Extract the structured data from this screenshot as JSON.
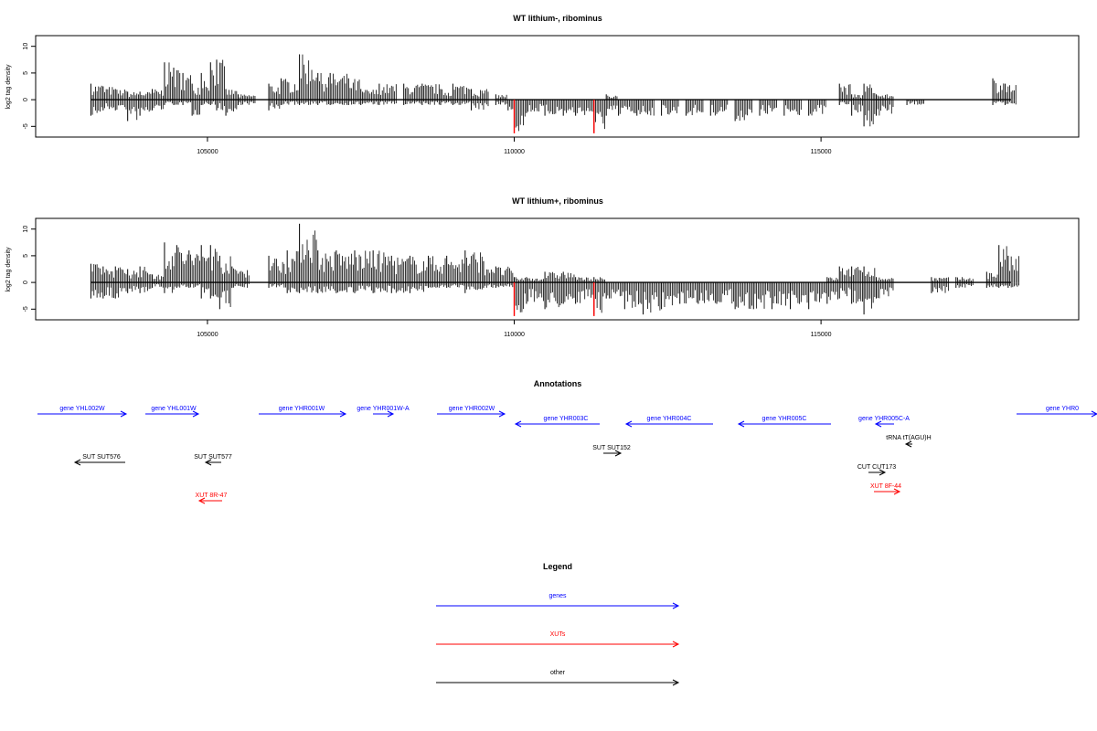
{
  "colors": {
    "gene": "#0000ff",
    "xut": "#ff0000",
    "other": "#000000",
    "pos_bar": "#000000",
    "neg_bar": "#000000",
    "highlight": "#ff0000",
    "axis": "#000000"
  },
  "chart_data": [
    {
      "type": "bar",
      "title": "WT lithium-, ribominus",
      "ylabel": "log2 tag density",
      "xlim": [
        102200,
        119200
      ],
      "ylim": [
        -7,
        12
      ],
      "xticks": [
        105000,
        110000,
        115000
      ],
      "yticks": [
        -5,
        0,
        5,
        10
      ],
      "data_range": [
        103100,
        118100
      ],
      "series": [
        {
          "values": [
            [
              103100,
              3,
              -3
            ],
            [
              103300,
              2.5,
              -2
            ],
            [
              103500,
              2,
              -2
            ],
            [
              103700,
              1.5,
              -4
            ],
            [
              103900,
              1.5,
              -3
            ],
            [
              104100,
              2,
              -2
            ],
            [
              104300,
              7,
              -1
            ],
            [
              104450,
              6,
              -1
            ],
            [
              104600,
              5,
              -1
            ],
            [
              104750,
              3,
              -3
            ],
            [
              104900,
              5,
              -1
            ],
            [
              105050,
              7,
              -1
            ],
            [
              105150,
              7.5,
              -2
            ],
            [
              105300,
              2,
              -3
            ],
            [
              105500,
              1,
              -1
            ],
            [
              106000,
              3,
              -2
            ],
            [
              106200,
              4,
              -1
            ],
            [
              106500,
              8.5,
              -1
            ],
            [
              106800,
              5,
              -1
            ],
            [
              107000,
              5,
              -1
            ],
            [
              107300,
              4,
              -1
            ],
            [
              107500,
              2,
              -1
            ],
            [
              107800,
              3,
              -1
            ],
            [
              108200,
              3,
              -1
            ],
            [
              108500,
              3,
              -1
            ],
            [
              108800,
              2,
              -1
            ],
            [
              109000,
              3,
              -1
            ],
            [
              109300,
              2,
              -2
            ],
            [
              109700,
              1,
              -1
            ],
            [
              109900,
              0,
              -2
            ],
            [
              110000,
              0,
              -6
            ],
            [
              110200,
              0,
              -2.5
            ],
            [
              110500,
              0,
              -3
            ],
            [
              110800,
              0,
              -3
            ],
            [
              111000,
              0,
              -3
            ],
            [
              111300,
              0,
              -6
            ],
            [
              111500,
              1,
              -3
            ],
            [
              111700,
              0,
              -3
            ],
            [
              112000,
              0,
              -3
            ],
            [
              112400,
              0,
              -3
            ],
            [
              112800,
              0,
              -3
            ],
            [
              113200,
              0,
              -3
            ],
            [
              113600,
              0,
              -4
            ],
            [
              114000,
              0,
              -3
            ],
            [
              114400,
              0,
              -3
            ],
            [
              114800,
              0,
              -3
            ],
            [
              115300,
              3,
              -1
            ],
            [
              115500,
              1,
              -3
            ],
            [
              115700,
              3,
              -5
            ],
            [
              115900,
              1,
              -3
            ],
            [
              116400,
              0,
              -1
            ],
            [
              117800,
              4,
              -1
            ],
            [
              118000,
              3,
              -1
            ]
          ]
        }
      ],
      "highlight_x": [
        110000,
        111300
      ]
    },
    {
      "type": "bar",
      "title": "WT lithium+, ribominus",
      "ylabel": "log2 tag density",
      "xlim": [
        102200,
        119200
      ],
      "ylim": [
        -7,
        12
      ],
      "xticks": [
        105000,
        110000,
        115000
      ],
      "yticks": [
        -5,
        0,
        5,
        10
      ],
      "data_range": [
        103100,
        118100
      ],
      "series": [
        {
          "values": [
            [
              103100,
              3.5,
              -3
            ],
            [
              103300,
              3,
              -3
            ],
            [
              103500,
              3,
              -3
            ],
            [
              103700,
              2.5,
              -2
            ],
            [
              103900,
              3,
              -2
            ],
            [
              104100,
              1.5,
              -1
            ],
            [
              104300,
              7.5,
              -2
            ],
            [
              104500,
              7,
              -1
            ],
            [
              104700,
              6,
              -1
            ],
            [
              104900,
              7,
              -3
            ],
            [
              105050,
              7,
              -3
            ],
            [
              105200,
              5,
              -5
            ],
            [
              105400,
              3,
              -1
            ],
            [
              106000,
              5,
              -1
            ],
            [
              106300,
              6,
              -2
            ],
            [
              106500,
              11,
              -2
            ],
            [
              106800,
              6,
              -2
            ],
            [
              107100,
              6,
              -2
            ],
            [
              107400,
              6,
              -2
            ],
            [
              107700,
              6,
              -2
            ],
            [
              108000,
              5,
              -2
            ],
            [
              108300,
              5,
              -2
            ],
            [
              108600,
              5,
              -1
            ],
            [
              108900,
              5,
              -1
            ],
            [
              109200,
              6,
              -2
            ],
            [
              109500,
              4,
              -1
            ],
            [
              109700,
              3,
              -1
            ],
            [
              110000,
              1,
              -6
            ],
            [
              110200,
              1,
              -4
            ],
            [
              110500,
              2,
              -5
            ],
            [
              110800,
              2,
              -4
            ],
            [
              111000,
              1,
              -4
            ],
            [
              111300,
              1,
              -6
            ],
            [
              111500,
              0,
              -3
            ],
            [
              111800,
              0,
              -5
            ],
            [
              112100,
              0,
              -6
            ],
            [
              112400,
              0,
              -5
            ],
            [
              112700,
              0,
              -4
            ],
            [
              113000,
              0,
              -4
            ],
            [
              113300,
              0,
              -4
            ],
            [
              113600,
              0,
              -5
            ],
            [
              113900,
              0,
              -5
            ],
            [
              114200,
              0,
              -5
            ],
            [
              114500,
              0,
              -5
            ],
            [
              114800,
              0,
              -5
            ],
            [
              115100,
              1,
              -4
            ],
            [
              115300,
              3,
              -3
            ],
            [
              115500,
              3,
              -4
            ],
            [
              115700,
              3,
              -6
            ],
            [
              115900,
              1,
              -3
            ],
            [
              116800,
              1,
              -2
            ],
            [
              117200,
              1,
              -1
            ],
            [
              117700,
              2,
              -1
            ],
            [
              117900,
              7,
              -1
            ],
            [
              118050,
              5,
              -1
            ]
          ]
        }
      ],
      "highlight_x": [
        110000,
        111300
      ]
    }
  ],
  "ticklabels": [
    "105000",
    "110000",
    "115000"
  ],
  "yticklabels": [
    "-5",
    "0",
    "5",
    "10"
  ],
  "annotations": {
    "title": "Annotations",
    "items": [
      {
        "label": "gene YHL002W",
        "kind": "gene",
        "dir": "right",
        "row": 0
      },
      {
        "label": "gene YHL001W",
        "kind": "gene",
        "dir": "right",
        "row": 0
      },
      {
        "label": "gene YHR001W",
        "kind": "gene",
        "dir": "right",
        "row": 0
      },
      {
        "label": "gene YHR001W-A",
        "kind": "gene",
        "dir": "right",
        "row": 0
      },
      {
        "label": "gene YHR002W",
        "kind": "gene",
        "dir": "right",
        "row": 0
      },
      {
        "label": "gene YHR003C",
        "kind": "gene",
        "dir": "left",
        "row": 1
      },
      {
        "label": "gene YHR004C",
        "kind": "gene",
        "dir": "left",
        "row": 1
      },
      {
        "label": "gene YHR005C",
        "kind": "gene",
        "dir": "left",
        "row": 1
      },
      {
        "label": "gene YHR005C-A",
        "kind": "gene",
        "dir": "left",
        "row": 1
      },
      {
        "label": "gene YHR0",
        "kind": "gene",
        "dir": "right",
        "row": 0
      },
      {
        "label": "tRNA tT(AGU)H",
        "kind": "other",
        "dir": "left",
        "row": 2
      },
      {
        "label": "SUT SUT576",
        "kind": "other",
        "dir": "left",
        "row": 3
      },
      {
        "label": "SUT SUT577",
        "kind": "other",
        "dir": "left",
        "row": 3
      },
      {
        "label": "SUT SUT152",
        "kind": "other",
        "dir": "right",
        "row": 3
      },
      {
        "label": "CUT CUT173",
        "kind": "other",
        "dir": "right",
        "row": 4
      },
      {
        "label": "XUT 8R-47",
        "kind": "xut",
        "dir": "left",
        "row": 5
      },
      {
        "label": "XUT 8F-44",
        "kind": "xut",
        "dir": "right",
        "row": 5
      }
    ]
  },
  "legend": {
    "title": "Legend",
    "entries": [
      {
        "label": "genes",
        "kind": "gene"
      },
      {
        "label": "XUTs",
        "kind": "xut"
      },
      {
        "label": "other",
        "kind": "other"
      }
    ]
  }
}
